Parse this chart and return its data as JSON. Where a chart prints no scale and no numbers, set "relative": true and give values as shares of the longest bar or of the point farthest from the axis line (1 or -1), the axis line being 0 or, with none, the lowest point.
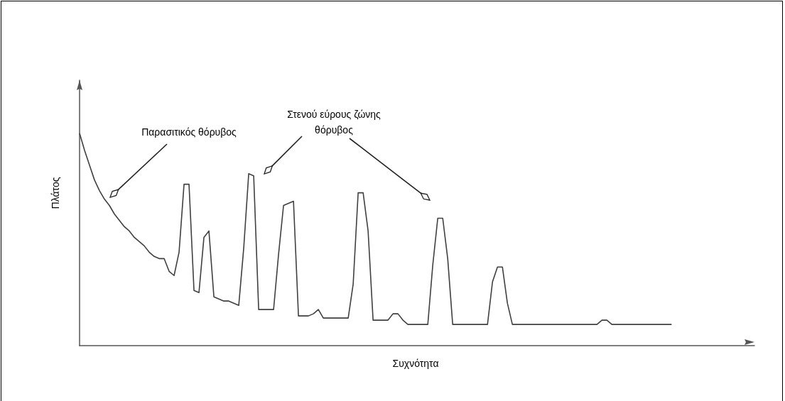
{
  "chart_data": {
    "type": "line",
    "xlabel": "Συχνότητα",
    "ylabel": "Πλάτος",
    "relative": true,
    "color": "#404040",
    "annotations": [
      "Παρασιτικός θόρυβος",
      "Στενού εύρους ζώνης\nθόρυβος"
    ],
    "categories": [
      null,
      null,
      null,
      null,
      null,
      null,
      null,
      null,
      null,
      null,
      null,
      null,
      null,
      null,
      null,
      null,
      null,
      null,
      null,
      null,
      null,
      null,
      null,
      null,
      null,
      null,
      null,
      null,
      null,
      null,
      null,
      null,
      null,
      null,
      null,
      null,
      null,
      null,
      null,
      null,
      null,
      null,
      null,
      null,
      null,
      null,
      null,
      null,
      null,
      null,
      null,
      null,
      null,
      null,
      null,
      null,
      null,
      null,
      null,
      null,
      null,
      null,
      null,
      null,
      null,
      null,
      null,
      null,
      null,
      null,
      null,
      null,
      null,
      null,
      null,
      null,
      null,
      null,
      null,
      null,
      null,
      null,
      null,
      null,
      null,
      null,
      null,
      null,
      null,
      null,
      null,
      null,
      null,
      null,
      null,
      null,
      null,
      null,
      null,
      null,
      null,
      null,
      null,
      null,
      null,
      null,
      null,
      null,
      null,
      null,
      null,
      null,
      null,
      null,
      null,
      null,
      null,
      null,
      null,
      null
    ],
    "values": [
      1,
      0.92,
      0.85,
      0.78,
      0.73,
      0.69,
      0.66,
      0.62,
      0.59,
      0.56,
      0.54,
      0.51,
      0.49,
      0.47,
      0.44,
      0.42,
      0.41,
      0.41,
      0.35,
      0.33,
      0.44,
      0.76,
      0.76,
      0.26,
      0.25,
      0.51,
      0.54,
      0.23,
      0.22,
      0.21,
      0.21,
      0.2,
      0.19,
      0.46,
      0.81,
      0.8,
      0.17,
      0.17,
      0.17,
      0.17,
      0.43,
      0.66,
      0.67,
      0.68,
      0.14,
      0.14,
      0.14,
      0.15,
      0.17,
      0.13,
      0.13,
      0.13,
      0.13,
      0.13,
      0.13,
      0.29,
      0.72,
      0.72,
      0.54,
      0.12,
      0.12,
      0.12,
      0.12,
      0.15,
      0.15,
      0.12,
      0.1,
      0.1,
      0.1,
      0.1,
      0.1,
      0.38,
      0.6,
      0.6,
      0.41,
      0.1,
      0.1,
      0.1,
      0.1,
      0.1,
      0.1,
      0.1,
      0.1,
      0.3,
      0.37,
      0.37,
      0.2,
      0.1,
      0.1,
      0.1,
      0.1,
      0.1,
      0.1,
      0.1,
      0.1,
      0.1,
      0.1,
      0.1,
      0.1,
      0.1,
      0.1,
      0.1,
      0.1,
      0.1,
      0.1,
      0.12,
      0.12,
      0.1,
      0.1,
      0.1,
      0.1,
      0.1,
      0.1,
      0.1,
      0.1,
      0.1,
      0.1,
      0.1,
      0.1,
      0.1
    ]
  }
}
